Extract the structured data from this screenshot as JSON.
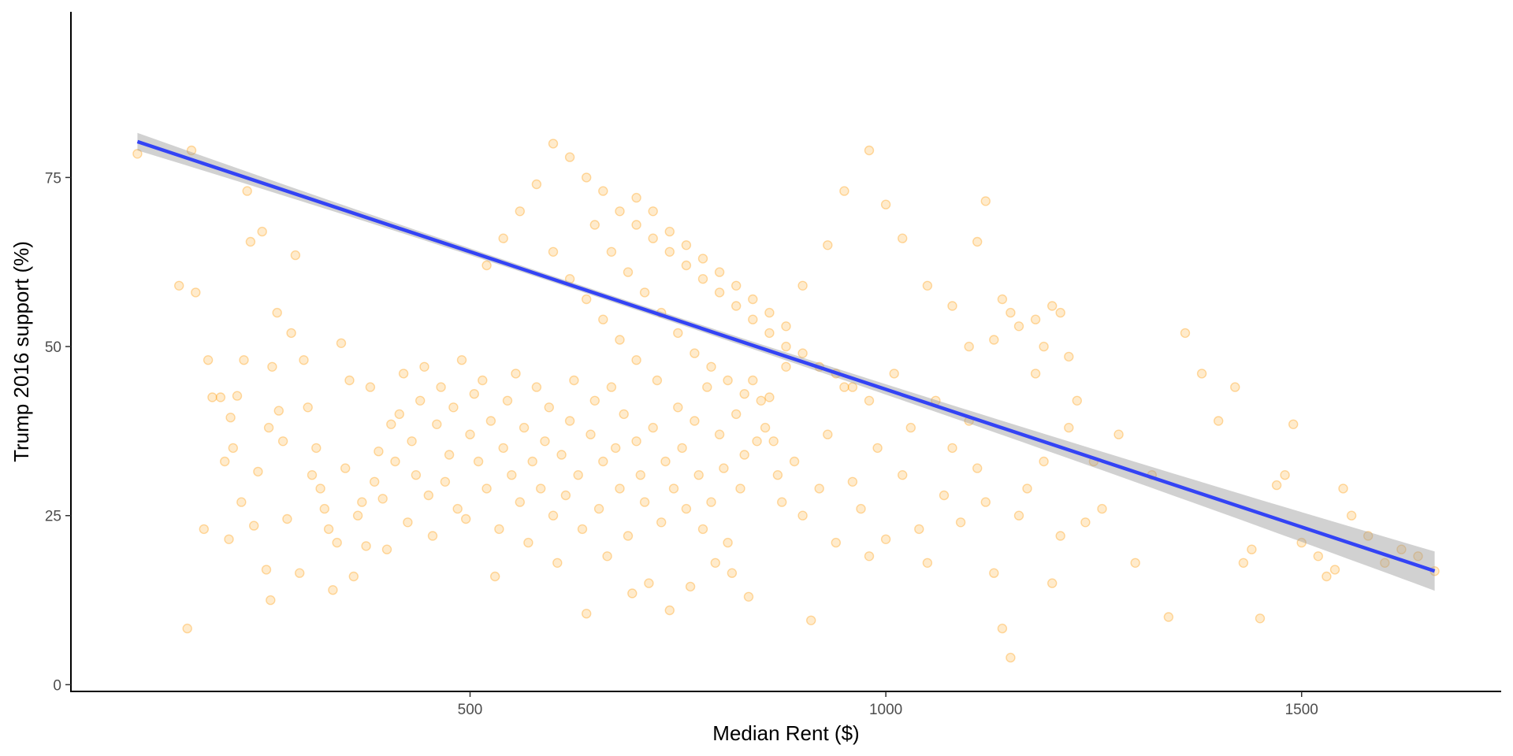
{
  "chart_data": {
    "type": "scatter",
    "title": "",
    "xlabel": "Median Rent ($)",
    "ylabel": "Trump 2016 support (%)",
    "xlim": [
      20,
      1740
    ],
    "ylim": [
      -1,
      99.5
    ],
    "x_ticks": [
      500,
      1000,
      1500
    ],
    "y_ticks": [
      0,
      25,
      50,
      75
    ],
    "x_tick_labels": [
      "500",
      "1000",
      "1500"
    ],
    "y_tick_labels": [
      "0",
      "25",
      "50",
      "75"
    ],
    "grid": false,
    "legend": "none",
    "point_color": "#FF9900",
    "point_alpha": 0.2,
    "fit_line_color": "#3343F5",
    "confidence_band_color": "#999999",
    "fit": {
      "type": "linear",
      "x_range": [
        100,
        1660
      ],
      "y_at_start": 80.3,
      "y_at_end": 16.8,
      "ci_half_width_start": 1.3,
      "ci_half_width_center": 0.45,
      "ci_half_width_end": 2.9
    },
    "points": [
      [
        100,
        78.5
      ],
      [
        150,
        59
      ],
      [
        160,
        8.3
      ],
      [
        165,
        79
      ],
      [
        170,
        58
      ],
      [
        180,
        23
      ],
      [
        185,
        48
      ],
      [
        190,
        42.5
      ],
      [
        200,
        42.5
      ],
      [
        205,
        33
      ],
      [
        210,
        21.5
      ],
      [
        212,
        39.5
      ],
      [
        215,
        35
      ],
      [
        220,
        42.7
      ],
      [
        225,
        27
      ],
      [
        228,
        48
      ],
      [
        232,
        73
      ],
      [
        236,
        65.5
      ],
      [
        240,
        23.5
      ],
      [
        245,
        31.5
      ],
      [
        250,
        67
      ],
      [
        255,
        17
      ],
      [
        258,
        38
      ],
      [
        260,
        12.5
      ],
      [
        262,
        47
      ],
      [
        268,
        55
      ],
      [
        270,
        40.5
      ],
      [
        275,
        36
      ],
      [
        280,
        24.5
      ],
      [
        285,
        52
      ],
      [
        290,
        63.5
      ],
      [
        295,
        16.5
      ],
      [
        300,
        48
      ],
      [
        305,
        41
      ],
      [
        310,
        31
      ],
      [
        315,
        35
      ],
      [
        320,
        29
      ],
      [
        325,
        26
      ],
      [
        330,
        23
      ],
      [
        335,
        14
      ],
      [
        340,
        21
      ],
      [
        345,
        50.5
      ],
      [
        350,
        32
      ],
      [
        355,
        45
      ],
      [
        360,
        16
      ],
      [
        365,
        25
      ],
      [
        370,
        27
      ],
      [
        375,
        20.5
      ],
      [
        380,
        44
      ],
      [
        385,
        30
      ],
      [
        390,
        34.5
      ],
      [
        395,
        27.5
      ],
      [
        400,
        20
      ],
      [
        405,
        38.5
      ],
      [
        410,
        33
      ],
      [
        415,
        40
      ],
      [
        420,
        46
      ],
      [
        425,
        24
      ],
      [
        430,
        36
      ],
      [
        435,
        31
      ],
      [
        440,
        42
      ],
      [
        445,
        47
      ],
      [
        450,
        28
      ],
      [
        455,
        22
      ],
      [
        460,
        38.5
      ],
      [
        465,
        44
      ],
      [
        470,
        30
      ],
      [
        475,
        34
      ],
      [
        480,
        41
      ],
      [
        485,
        26
      ],
      [
        490,
        48
      ],
      [
        495,
        24.5
      ],
      [
        500,
        37
      ],
      [
        505,
        43
      ],
      [
        510,
        33
      ],
      [
        515,
        45
      ],
      [
        520,
        29
      ],
      [
        525,
        39
      ],
      [
        530,
        16
      ],
      [
        535,
        23
      ],
      [
        540,
        35
      ],
      [
        545,
        42
      ],
      [
        550,
        31
      ],
      [
        555,
        46
      ],
      [
        560,
        27
      ],
      [
        565,
        38
      ],
      [
        570,
        21
      ],
      [
        575,
        33
      ],
      [
        580,
        44
      ],
      [
        585,
        29
      ],
      [
        590,
        36
      ],
      [
        595,
        41
      ],
      [
        600,
        25
      ],
      [
        605,
        18
      ],
      [
        610,
        34
      ],
      [
        615,
        28
      ],
      [
        620,
        39
      ],
      [
        625,
        45
      ],
      [
        630,
        31
      ],
      [
        635,
        23
      ],
      [
        640,
        10.5
      ],
      [
        645,
        37
      ],
      [
        650,
        42
      ],
      [
        655,
        26
      ],
      [
        660,
        33
      ],
      [
        665,
        19
      ],
      [
        670,
        44
      ],
      [
        675,
        35
      ],
      [
        680,
        29
      ],
      [
        685,
        40
      ],
      [
        690,
        22
      ],
      [
        695,
        13.5
      ],
      [
        700,
        36
      ],
      [
        705,
        31
      ],
      [
        710,
        27
      ],
      [
        715,
        15
      ],
      [
        720,
        38
      ],
      [
        725,
        45
      ],
      [
        730,
        24
      ],
      [
        735,
        33
      ],
      [
        740,
        11
      ],
      [
        745,
        29
      ],
      [
        750,
        41
      ],
      [
        755,
        35
      ],
      [
        760,
        26
      ],
      [
        765,
        14.5
      ],
      [
        770,
        39
      ],
      [
        775,
        31
      ],
      [
        780,
        23
      ],
      [
        785,
        44
      ],
      [
        790,
        27
      ],
      [
        795,
        18
      ],
      [
        800,
        37
      ],
      [
        805,
        32
      ],
      [
        810,
        21
      ],
      [
        815,
        16.5
      ],
      [
        820,
        40
      ],
      [
        825,
        29
      ],
      [
        830,
        34
      ],
      [
        835,
        13
      ],
      [
        840,
        45
      ],
      [
        845,
        36
      ],
      [
        850,
        42
      ],
      [
        855,
        38
      ],
      [
        860,
        42.5
      ],
      [
        865,
        36
      ],
      [
        870,
        31
      ],
      [
        875,
        27
      ],
      [
        880,
        47
      ],
      [
        890,
        33
      ],
      [
        900,
        25
      ],
      [
        910,
        9.5
      ],
      [
        920,
        29
      ],
      [
        930,
        37
      ],
      [
        940,
        21
      ],
      [
        950,
        44
      ],
      [
        960,
        30
      ],
      [
        970,
        26
      ],
      [
        980,
        19
      ],
      [
        990,
        35
      ],
      [
        1000,
        21.5
      ],
      [
        1010,
        46
      ],
      [
        1020,
        31
      ],
      [
        1030,
        38
      ],
      [
        1040,
        23
      ],
      [
        1050,
        18
      ],
      [
        1060,
        42
      ],
      [
        1070,
        28
      ],
      [
        1080,
        35
      ],
      [
        1090,
        24
      ],
      [
        1100,
        39
      ],
      [
        1110,
        32
      ],
      [
        1120,
        27
      ],
      [
        1130,
        16.5
      ],
      [
        1140,
        8.3
      ],
      [
        1150,
        4
      ],
      [
        1160,
        25
      ],
      [
        1170,
        29
      ],
      [
        1180,
        46
      ],
      [
        1190,
        33
      ],
      [
        1200,
        15
      ],
      [
        1210,
        22
      ],
      [
        1220,
        38
      ],
      [
        1230,
        42
      ],
      [
        1240,
        24
      ],
      [
        1250,
        33
      ],
      [
        1260,
        26
      ],
      [
        1280,
        37
      ],
      [
        1300,
        18
      ],
      [
        1320,
        31
      ],
      [
        1340,
        10
      ],
      [
        1360,
        52
      ],
      [
        1380,
        46
      ],
      [
        1400,
        39
      ],
      [
        1420,
        44
      ],
      [
        1430,
        18
      ],
      [
        1440,
        20
      ],
      [
        1450,
        9.8
      ],
      [
        1470,
        29.5
      ],
      [
        1480,
        31
      ],
      [
        1490,
        38.5
      ],
      [
        1500,
        21
      ],
      [
        1520,
        19
      ],
      [
        1530,
        16
      ],
      [
        1540,
        17
      ],
      [
        1550,
        29
      ],
      [
        1560,
        25
      ],
      [
        1580,
        22
      ],
      [
        1600,
        18
      ],
      [
        1620,
        20
      ],
      [
        1640,
        19
      ],
      [
        1660,
        16.8
      ],
      [
        600,
        80
      ],
      [
        620,
        78
      ],
      [
        640,
        75
      ],
      [
        660,
        73
      ],
      [
        680,
        70
      ],
      [
        700,
        68
      ],
      [
        720,
        66
      ],
      [
        740,
        64
      ],
      [
        760,
        62
      ],
      [
        780,
        60
      ],
      [
        800,
        58
      ],
      [
        820,
        56
      ],
      [
        840,
        54
      ],
      [
        860,
        52
      ],
      [
        880,
        50
      ],
      [
        900,
        49
      ],
      [
        920,
        47
      ],
      [
        940,
        46
      ],
      [
        960,
        44
      ],
      [
        980,
        42
      ],
      [
        650,
        68
      ],
      [
        670,
        64
      ],
      [
        690,
        61
      ],
      [
        710,
        58
      ],
      [
        730,
        55
      ],
      [
        750,
        52
      ],
      [
        770,
        49
      ],
      [
        790,
        47
      ],
      [
        810,
        45
      ],
      [
        830,
        43
      ],
      [
        700,
        72
      ],
      [
        720,
        70
      ],
      [
        740,
        67
      ],
      [
        760,
        65
      ],
      [
        780,
        63
      ],
      [
        800,
        61
      ],
      [
        820,
        59
      ],
      [
        840,
        57
      ],
      [
        860,
        55
      ],
      [
        880,
        53
      ],
      [
        580,
        74
      ],
      [
        560,
        70
      ],
      [
        540,
        66
      ],
      [
        520,
        62
      ],
      [
        600,
        64
      ],
      [
        620,
        60
      ],
      [
        640,
        57
      ],
      [
        660,
        54
      ],
      [
        680,
        51
      ],
      [
        700,
        48
      ],
      [
        980,
        79
      ],
      [
        1000,
        71
      ],
      [
        1020,
        66
      ],
      [
        1050,
        59
      ],
      [
        1120,
        71.5
      ],
      [
        1080,
        56
      ],
      [
        1110,
        65.5
      ],
      [
        950,
        73
      ],
      [
        930,
        65
      ],
      [
        900,
        59
      ],
      [
        1200,
        56
      ],
      [
        1210,
        55
      ],
      [
        1180,
        54
      ],
      [
        1160,
        53
      ],
      [
        1140,
        57
      ],
      [
        1150,
        55
      ],
      [
        1130,
        51
      ],
      [
        1190,
        50
      ],
      [
        1220,
        48.5
      ],
      [
        1100,
        50
      ]
    ]
  }
}
